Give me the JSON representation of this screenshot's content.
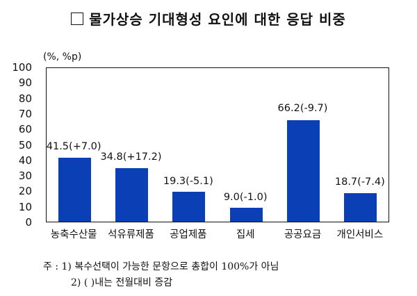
{
  "title": "물가상승 기대형성 요인에 대한 응답 비중",
  "unit": "(%, %p)",
  "notes": [
    "주 : 1) 복수선택이 가능한 문항으로 총합이 100%가 아님",
    "2) ( )내는 전월대비 증감"
  ],
  "chart_data": {
    "type": "bar",
    "title": "물가상승 기대형성 요인에 대한 응답 비중",
    "ylabel": "(%, %p)",
    "xlabel": "",
    "ylim": [
      0,
      100
    ],
    "yticks": [
      0,
      10,
      20,
      30,
      40,
      50,
      60,
      70,
      80,
      90,
      100
    ],
    "categories": [
      "농축수산물",
      "석유류제품",
      "공업제품",
      "집세",
      "공공요금",
      "개인서비스"
    ],
    "values": [
      41.5,
      34.8,
      19.3,
      9.0,
      66.2,
      18.7
    ],
    "changes": [
      7.0,
      17.2,
      -5.1,
      -1.0,
      -9.7,
      -7.4
    ],
    "data_labels": [
      "41.5(+7.0)",
      "34.8(+17.2)",
      "19.3(-5.1)",
      "9.0(-1.0)",
      "66.2(-9.7)",
      "18.7(-7.4)"
    ],
    "color": "#0a3fb5",
    "grid": false,
    "legend": null
  }
}
